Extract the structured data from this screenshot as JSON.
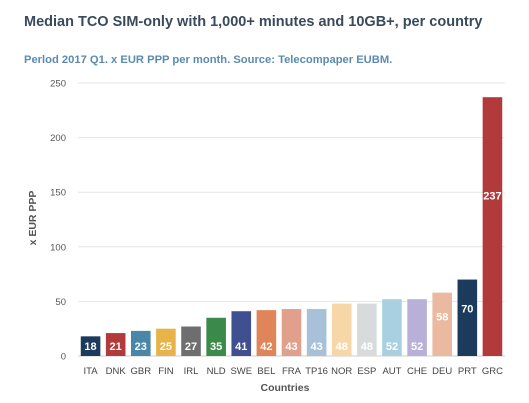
{
  "chart_data": {
    "type": "bar",
    "title": "Median TCO SIM-only with 1,000+ minutes and 10GB+, per country",
    "subtitle": "Perlod 2017 Q1. x EUR PPP per month. Source: Telecompaper EUBM.",
    "xlabel": "Countries",
    "ylabel": "x EUR PPP",
    "ylim": [
      0,
      250
    ],
    "yticks": [
      0,
      50,
      100,
      150,
      200,
      250
    ],
    "grid": true,
    "legend": "none",
    "categories": [
      "ITA",
      "DNK",
      "GBR",
      "FIN",
      "IRL",
      "NLD",
      "SWE",
      "BEL",
      "FRA",
      "TP16",
      "NOR",
      "ESP",
      "AUT",
      "CHE",
      "DEU",
      "PRT",
      "GRC"
    ],
    "values": [
      18,
      21,
      23,
      25,
      27,
      35,
      41,
      42,
      43,
      43,
      48,
      48,
      52,
      52,
      58,
      70,
      237
    ],
    "data_labels": [
      "18",
      "21",
      "23",
      "25",
      "27",
      "35",
      "41",
      "42",
      "43",
      "43",
      "48",
      "48",
      "52",
      "52",
      "58",
      "70",
      "237"
    ],
    "colors": [
      "#1b3a5c",
      "#b33a3a",
      "#4a86a8",
      "#e8b44a",
      "#6e6e6e",
      "#3b8a4a",
      "#3f4f8f",
      "#e0845a",
      "#e0a08c",
      "#a8c0d8",
      "#f7d7a8",
      "#d8dadc",
      "#a8d0e0",
      "#b8b0d8",
      "#ebb8a0",
      "#1b3a5c",
      "#b33a3a"
    ]
  }
}
